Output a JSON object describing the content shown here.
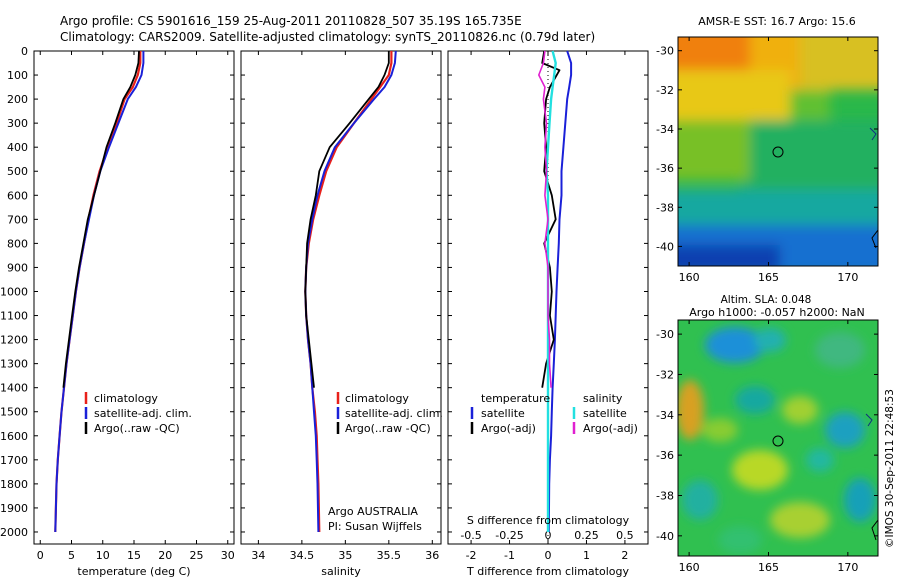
{
  "header": {
    "line1": "Argo profile: CS 5901616_159 25-Aug-2011 20110828_507 35.19S 165.735E",
    "line2": "Climatology: CARS2009. Satellite-adjusted climatology: synTS_20110826.nc (0.79d later)"
  },
  "colors": {
    "climatology": "#e8201a",
    "satellite": "#1a20d8",
    "argo": "#000000",
    "s_satellite": "#22e0e0",
    "s_argo": "#e020d0"
  },
  "depth_ticks": [
    "0",
    "100",
    "200",
    "300",
    "400",
    "500",
    "600",
    "700",
    "800",
    "900",
    "1000",
    "1100",
    "1200",
    "1300",
    "1400",
    "1500",
    "1600",
    "1700",
    "1800",
    "1900",
    "2000"
  ],
  "panels": {
    "temperature": {
      "xlabel": "temperature (deg C)",
      "xticks": [
        "0",
        "5",
        "10",
        "15",
        "20",
        "25",
        "30"
      ],
      "legend": [
        "climatology",
        "satellite-adj. clim.",
        "Argo(..raw -QC)"
      ]
    },
    "salinity": {
      "xlabel": "salinity",
      "xticks": [
        "34",
        "34.5",
        "35",
        "35.5",
        "36"
      ],
      "legend": [
        "climatology",
        "satellite-adj. clim.",
        "Argo(..raw -QC)"
      ],
      "note1": "Argo AUSTRALIA",
      "note2": "PI: Susan Wijffels"
    },
    "difference": {
      "xlabel": "T difference from climatology",
      "xticks": [
        "-2",
        "-1",
        "0",
        "1",
        "2"
      ],
      "top_label": "S difference from climatology",
      "top_ticks": [
        "-0.5",
        "-0.25",
        "0",
        "0.25",
        "0.5"
      ],
      "legend_t_title": "temperature",
      "legend_s_title": "salinity",
      "legend_t": [
        "satellite",
        "Argo(-adj)"
      ],
      "legend_s": [
        "satellite",
        "Argo(-adj)"
      ]
    }
  },
  "maps": {
    "sst": {
      "title": "AMSR-E SST: 16.7 Argo: 15.6",
      "yticks": [
        "-30",
        "-32",
        "-34",
        "-36",
        "-38",
        "-40"
      ],
      "xticks": [
        "160",
        "165",
        "170"
      ]
    },
    "sla": {
      "title1": "Altim. SLA: 0.048",
      "title2": "Argo h1000: -0.057 h2000: NaN",
      "yticks": [
        "-30",
        "-32",
        "-34",
        "-36",
        "-38",
        "-40"
      ],
      "xticks": [
        "160",
        "165",
        "170"
      ]
    }
  },
  "credit": "©IMOS 30-Sep-2011 22:48:53",
  "chart_data": [
    {
      "type": "line",
      "xlabel": "temperature (deg C)",
      "ylabel": "",
      "xlim": [
        -1,
        31
      ],
      "ylim": [
        2050,
        0
      ],
      "series": [
        {
          "name": "climatology",
          "x": [
            16.0,
            16.0,
            15.6,
            14.8,
            13.5,
            12.2,
            10.8,
            9.5,
            8.5,
            7.7,
            7.0,
            6.3,
            5.7,
            5.2,
            4.7,
            4.2,
            3.8,
            3.4,
            3.1,
            2.8,
            2.6,
            2.4
          ],
          "y": [
            0,
            50,
            100,
            150,
            200,
            300,
            400,
            500,
            600,
            700,
            800,
            900,
            1000,
            1100,
            1200,
            1300,
            1400,
            1500,
            1600,
            1700,
            1800,
            2000
          ]
        },
        {
          "name": "satellite-adj. clim.",
          "x": [
            16.5,
            16.5,
            16.2,
            15.3,
            14.0,
            12.5,
            11.0,
            9.6,
            8.6,
            7.8,
            7.0,
            6.3,
            5.7,
            5.2,
            4.7,
            4.2,
            3.8,
            3.4,
            3.1,
            2.8,
            2.6,
            2.4
          ],
          "y": [
            0,
            50,
            100,
            150,
            200,
            300,
            400,
            500,
            600,
            700,
            800,
            900,
            1000,
            1100,
            1200,
            1300,
            1400,
            1500,
            1600,
            1700,
            1800,
            2000
          ]
        },
        {
          "name": "Argo(..raw -QC)",
          "x": [
            15.8,
            15.7,
            15.2,
            14.4,
            13.3,
            12.0,
            10.6,
            9.6,
            8.6,
            7.6,
            6.9,
            6.2,
            5.6,
            5.1,
            4.6,
            4.1,
            3.7
          ],
          "y": [
            0,
            50,
            100,
            150,
            200,
            300,
            400,
            500,
            600,
            700,
            800,
            900,
            1000,
            1100,
            1200,
            1300,
            1400
          ]
        }
      ]
    },
    {
      "type": "line",
      "xlabel": "salinity",
      "ylabel": "",
      "xlim": [
        33.8,
        36.1
      ],
      "ylim": [
        2050,
        0
      ],
      "series": [
        {
          "name": "climatology",
          "x": [
            35.53,
            35.53,
            35.5,
            35.4,
            35.3,
            35.1,
            34.9,
            34.78,
            34.7,
            34.63,
            34.58,
            34.55,
            34.54,
            34.55,
            34.57,
            34.6,
            34.62,
            34.65,
            34.67,
            34.68,
            34.69,
            34.7
          ],
          "y": [
            0,
            50,
            100,
            150,
            200,
            300,
            400,
            500,
            600,
            700,
            800,
            900,
            1000,
            1100,
            1200,
            1300,
            1400,
            1500,
            1600,
            1700,
            1800,
            2000
          ]
        },
        {
          "name": "satellite-adj. clim.",
          "x": [
            35.58,
            35.57,
            35.53,
            35.45,
            35.33,
            35.1,
            34.88,
            34.76,
            34.68,
            34.62,
            34.57,
            34.55,
            34.54,
            34.55,
            34.57,
            34.6,
            34.62,
            34.64,
            34.66,
            34.67,
            34.68,
            34.69
          ],
          "y": [
            0,
            50,
            100,
            150,
            200,
            300,
            400,
            500,
            600,
            700,
            800,
            900,
            1000,
            1100,
            1200,
            1300,
            1400,
            1500,
            1600,
            1700,
            1800,
            2000
          ]
        },
        {
          "name": "Argo(..raw -QC)",
          "x": [
            35.5,
            35.5,
            35.45,
            35.38,
            35.27,
            35.05,
            34.82,
            34.7,
            34.66,
            34.6,
            34.56,
            34.55,
            34.54,
            34.55,
            34.58,
            34.61,
            34.64
          ],
          "y": [
            0,
            50,
            100,
            150,
            200,
            300,
            400,
            500,
            600,
            700,
            800,
            900,
            1000,
            1100,
            1200,
            1300,
            1400
          ]
        }
      ]
    },
    {
      "type": "line",
      "xlabel": "T difference from climatology",
      "ylabel": "",
      "xlim": [
        -2.6,
        2.6
      ],
      "ylim": [
        2050,
        0
      ],
      "series": [
        {
          "name": "satellite",
          "x": [
            0.5,
            0.6,
            0.6,
            0.55,
            0.5,
            0.45,
            0.4,
            0.35,
            0.35,
            0.3,
            0.28,
            0.25,
            0.22,
            0.2,
            0.18,
            0.15,
            0.12,
            0.1,
            0.08,
            0.05,
            0.03,
            0.02
          ],
          "y": [
            0,
            50,
            100,
            150,
            200,
            300,
            400,
            500,
            600,
            700,
            800,
            900,
            1000,
            1100,
            1200,
            1300,
            1400,
            1500,
            1600,
            1700,
            1800,
            2000
          ]
        },
        {
          "name": "Argo(-adj)",
          "x": [
            -0.1,
            -0.15,
            0.3,
            0.05,
            -0.05,
            -0.1,
            -0.05,
            -0.1,
            0.1,
            0.2,
            -0.1,
            0.05,
            0.1,
            0.05,
            0.15,
            -0.05,
            -0.15
          ],
          "y": [
            0,
            50,
            80,
            150,
            200,
            300,
            400,
            500,
            600,
            700,
            800,
            900,
            1000,
            1100,
            1200,
            1300,
            1400
          ]
        }
      ]
    },
    {
      "type": "line",
      "xlabel": "S difference from climatology",
      "ylabel": "",
      "xlim": [
        -0.65,
        0.65
      ],
      "ylim": [
        2050,
        0
      ],
      "series": [
        {
          "name": "satellite",
          "x": [
            0.03,
            0.05,
            0.04,
            0.03,
            0.02,
            0.01,
            0.0,
            -0.01,
            0.0,
            0.0,
            0.0,
            0.0,
            0.0,
            0.0,
            0.0,
            0.0,
            0.0,
            0.0,
            0.0,
            0.0,
            0.0,
            0.0
          ],
          "y": [
            0,
            50,
            100,
            150,
            200,
            300,
            400,
            500,
            600,
            700,
            800,
            900,
            1000,
            1100,
            1200,
            1300,
            1400,
            1500,
            1600,
            1700,
            1800,
            2000
          ]
        },
        {
          "name": "Argo(-adj)",
          "x": [
            -0.02,
            -0.03,
            -0.06,
            -0.02,
            -0.03,
            -0.01,
            -0.02,
            -0.01,
            -0.02,
            0.0,
            -0.02,
            0.0,
            0.0,
            0.0,
            0.01,
            0.01,
            0.02
          ],
          "y": [
            0,
            50,
            100,
            150,
            200,
            300,
            400,
            500,
            600,
            700,
            800,
            900,
            1000,
            1100,
            1200,
            1300,
            1400
          ]
        }
      ]
    }
  ]
}
